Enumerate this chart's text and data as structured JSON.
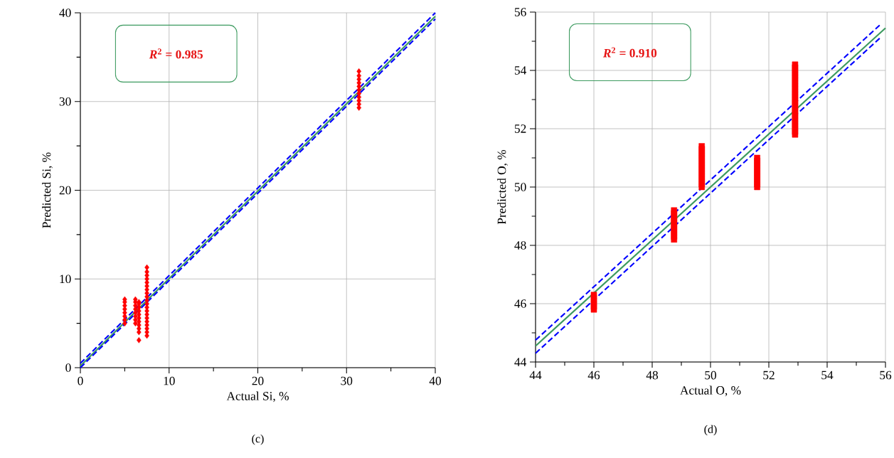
{
  "chart_data": [
    {
      "type": "scatter",
      "xlabel": "Actual Si, %",
      "ylabel": "Predicted Si, %",
      "xlim": [
        0,
        40
      ],
      "ylim": [
        0,
        40
      ],
      "xticks": [
        0,
        10,
        20,
        30,
        40
      ],
      "yticks": [
        0,
        10,
        20,
        30,
        40
      ],
      "grid": true,
      "annotations": [
        "*R*$^{2}$ = 0.985",
        "(c)"
      ],
      "series": [
        {
          "color": "#ff0000",
          "marker": "diamond",
          "x": [
            5,
            5,
            5,
            5,
            5,
            5,
            5,
            5,
            6.2,
            6.2,
            6.2,
            6.2,
            6.2,
            6.2,
            6.2,
            6.2,
            6.6,
            6.6,
            6.6,
            6.6,
            6.6,
            6.6,
            6.6,
            6.6,
            6.6,
            6.6,
            6.6,
            7.5,
            7.5,
            7.5,
            7.5,
            7.5,
            7.5,
            7.5,
            7.5,
            7.5,
            7.5,
            7.5,
            7.5,
            7.5,
            7.5,
            7.5,
            7.5,
            7.5,
            7.5,
            7.5,
            7.5,
            31.4,
            31.4,
            31.4,
            31.4,
            31.4,
            31.4,
            31.4,
            31.4,
            31.4,
            31.4,
            31.4
          ],
          "values": [
            5,
            5.4,
            5.8,
            6.2,
            6.6,
            7,
            7.4,
            7.7,
            5,
            5.4,
            5.8,
            6.2,
            6.6,
            7,
            7.4,
            7.7,
            3.1,
            4,
            4.4,
            4.8,
            5.2,
            5.6,
            6,
            6.4,
            6.8,
            7.2,
            7.4,
            3.6,
            4,
            4.4,
            4.8,
            5.2,
            5.6,
            6,
            6.4,
            6.8,
            7.2,
            7.6,
            8,
            8.4,
            8.8,
            9.2,
            9.6,
            10,
            10.4,
            10.8,
            11.3,
            29.3,
            29.7,
            30.1,
            30.5,
            30.9,
            31.3,
            31.7,
            32.1,
            32.5,
            32.9,
            33.4
          ]
        },
        {
          "type": "line",
          "color": "#3c9a5f",
          "x": [
            0,
            40
          ],
          "values": [
            0.2,
            39.6
          ]
        },
        {
          "type": "line",
          "color": "#0000ff",
          "line_style": "dashed",
          "x": [
            0,
            40
          ],
          "values": [
            0.5,
            40
          ]
        },
        {
          "type": "line",
          "color": "#0000ff",
          "line_style": "dashed",
          "x": [
            0,
            40
          ],
          "values": [
            0,
            39.3
          ]
        }
      ]
    },
    {
      "type": "scatter",
      "xlabel": "Actual O, %",
      "ylabel": "Predicted O, %",
      "xlim": [
        44,
        56
      ],
      "ylim": [
        44,
        56
      ],
      "xticks": [
        44,
        46,
        48,
        50,
        52,
        54,
        56
      ],
      "yticks": [
        44,
        46,
        48,
        50,
        52,
        54,
        56
      ],
      "grid": true,
      "annotations": [
        "*R*$^{2}$ = 0.910",
        "(d)"
      ],
      "series": [
        {
          "color": "#ff0000",
          "marker": "square",
          "x": [
            46,
            46,
            46,
            46,
            46,
            46,
            48.75,
            48.75,
            48.75,
            48.75,
            48.75,
            48.75,
            48.75,
            48.75,
            48.75,
            48.75,
            48.75,
            49.7,
            49.7,
            49.7,
            49.7,
            49.7,
            49.7,
            49.7,
            49.7,
            49.7,
            49.7,
            49.7,
            49.7,
            49.7,
            49.7,
            49.7,
            51.6,
            51.6,
            51.6,
            51.6,
            51.6,
            51.6,
            51.6,
            51.6,
            51.6,
            51.6,
            51.6,
            52.9,
            52.9,
            52.9,
            52.9,
            52.9,
            52.9,
            52.9,
            52.9,
            52.9,
            52.9,
            52.9,
            52.9,
            52.9,
            52.9,
            52.9,
            52.9,
            52.9,
            52.9,
            52.9,
            52.9,
            52.9,
            52.9,
            52.9,
            52.9,
            52.9
          ],
          "values": [
            45.8,
            45.9,
            46,
            46.1,
            46.2,
            46.3,
            48.2,
            48.3,
            48.4,
            48.5,
            48.6,
            48.7,
            48.8,
            48.9,
            49,
            49.1,
            49.2,
            50,
            50.1,
            50.2,
            50.3,
            50.4,
            50.5,
            50.6,
            50.7,
            50.8,
            50.9,
            51,
            51.1,
            51.2,
            51.3,
            51.4,
            50,
            50.1,
            50.2,
            50.3,
            50.4,
            50.5,
            50.6,
            50.7,
            50.8,
            50.9,
            51,
            51.8,
            51.9,
            52,
            52.1,
            52.2,
            52.3,
            52.4,
            52.5,
            52.6,
            52.7,
            52.8,
            52.9,
            53,
            53.1,
            53.2,
            53.3,
            53.4,
            53.5,
            53.6,
            53.7,
            53.8,
            53.9,
            54,
            54.1,
            54.2
          ]
        },
        {
          "type": "line",
          "color": "#3c9a5f",
          "x": [
            44,
            56
          ],
          "values": [
            44.55,
            55.45
          ]
        },
        {
          "type": "line",
          "color": "#0000ff",
          "line_style": "dashed",
          "x": [
            44,
            55.8
          ],
          "values": [
            44.75,
            55.55
          ]
        },
        {
          "type": "line",
          "color": "#0000ff",
          "line_style": "dashed",
          "x": [
            44,
            55.8
          ],
          "values": [
            44.3,
            55.1
          ]
        }
      ]
    }
  ]
}
